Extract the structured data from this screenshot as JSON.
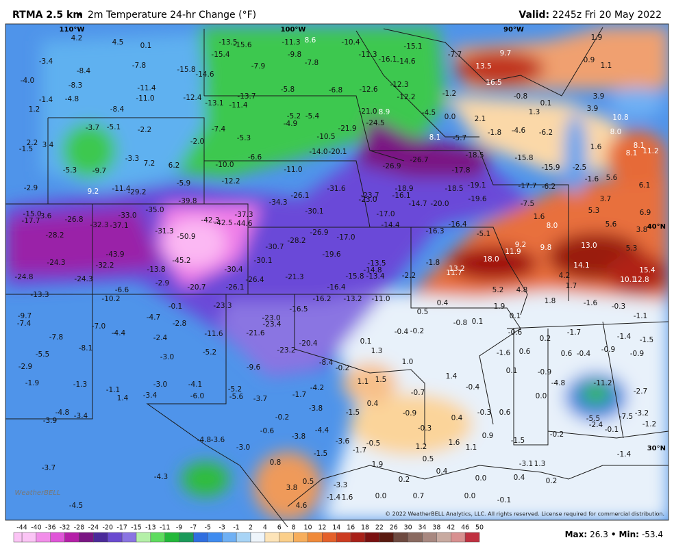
{
  "header": {
    "title": "RTMA 2.5 km",
    "separator": "•",
    "subtitle": "2m Temperature 24-hr Change (°F)",
    "valid_label": "Valid:",
    "valid_time": "2245z Fri 20 May 2022"
  },
  "map": {
    "lon_labels": [
      "110°W",
      "100°W",
      "90°W"
    ],
    "lat_labels": [
      "40°N",
      "30°N"
    ],
    "logo": "WeatherBELL",
    "copyright": "© 2022 WeatherBELL Analytics, LLC. All rights reserved. License required for commercial distribution.",
    "station_values": [
      4.2,
      4.5,
      0.1,
      -13.5,
      -15.6,
      -11.3,
      8.6,
      -10.4,
      -15.1,
      -7.7,
      9.7,
      1.9,
      -3.4,
      -8.4,
      -7.8,
      -15.4,
      -9.8,
      -7.8,
      -11.3,
      -16.1,
      -14.6,
      0.9,
      1.1,
      {
        "value": -4,
        "label": "-4.0"
      },
      -8.3,
      -11.4,
      -15.8,
      -14.6,
      -7.9,
      -5.8,
      -6.8,
      -12.6,
      -12.3,
      13.5,
      16.5,
      -1.2,
      -0.8,
      3.9,
      -1.4,
      -4.8,
      {
        "value": -11,
        "label": "-11.0"
      },
      -12.4,
      -13.1,
      -13.7,
      -11.4,
      -12.2,
      1.2,
      -8.4,
      0.1,
      3.9,
      10.8,
      -5.2,
      -5.4,
      -4.9,
      {
        "value": -21,
        "label": "-21.0"
      },
      8.9,
      -24.5,
      -4.5,
      {
        "value": 0,
        "label": "0.0"
      },
      2.1,
      1.3,
      -3.7,
      -5.1,
      -2.2,
      -7.4,
      -21.9,
      -10.5,
      -1.8,
      -4.6,
      -6.2,
      {
        "value": 8,
        "label": "8.0"
      },
      2.2,
      3.4,
      -1.5,
      {
        "value": -2,
        "label": "-2.0"
      },
      -5.3,
      {
        "value": -14,
        "label": "-14.0"
      },
      -20.1,
      8.1,
      -5.7,
      8.1,
      -3.3,
      7.2,
      6.2,
      -6.6,
      -26.9,
      -26.7,
      -18.5,
      -15.8,
      1.6,
      8.1,
      11.2,
      -5.3,
      -9.7,
      {
        "value": -10,
        "label": "-10.0"
      },
      {
        "value": -11,
        "label": "-11.0"
      },
      -17.8,
      -15.9,
      -2.5,
      -2.9,
      9.2,
      -11.4,
      -29.2,
      -5.9,
      -12.2,
      -31.6,
      -18.9,
      -18.5,
      -19.1,
      -17.7,
      -6.2,
      -1.6,
      5.6,
      6.1,
      -39.8,
      -26.1,
      -34.3,
      -23.7,
      {
        "value": -23,
        "label": "-23.0"
      },
      -16.1,
      -14.7,
      {
        "value": -20,
        "label": "-20.0"
      },
      -19.6,
      -7.5,
      3.7,
      {
        "value": -15,
        "label": "-15.0"
      },
      3.6,
      -17.7,
      -26.8,
      {
        "value": -33,
        "label": "-33.0"
      },
      {
        "value": -35,
        "label": "-35.0"
      },
      -37.3,
      -42.3,
      -42.5,
      -44.6,
      -30.1,
      {
        "value": -17,
        "label": "-17.0"
      },
      1.6,
      5.3,
      6.9,
      -32.3,
      -37.1,
      -31.3,
      -14.4,
      -16.4,
      -16.3,
      {
        "value": 8,
        "label": "8.0"
      },
      5.6,
      3.8,
      -28.2,
      -50.9,
      -26.9,
      -5.1,
      9.2,
      {
        "value": 13,
        "label": "13.0"
      },
      -30.7,
      -28.2,
      {
        "value": -17,
        "label": "-17.0"
      },
      -19.6,
      9.8,
      11.9,
      5.3,
      -43.9,
      -24.3,
      -32.2,
      -45.2,
      -30.1,
      -1.8,
      {
        "value": 18,
        "label": "18.0"
      },
      14.1,
      -13.5,
      13.2,
      11.7,
      15.4,
      -13.8,
      -30.4,
      -14.8,
      -15.8,
      -13.4,
      4.2,
      10.1,
      12.8,
      -24.8,
      -24.3,
      -26.4,
      -21.3,
      -2.2,
      -2.9,
      -20.7,
      -26.1,
      -16.4,
      5.2,
      4.8,
      1.7,
      -13.3,
      -6.6,
      -10.2,
      -16.2,
      -13.2,
      {
        "value": -11,
        "label": "-11.0"
      },
      0.4,
      1.8,
      -1.6,
      -0.3,
      -0.1,
      -23.3,
      -16.5,
      0.5,
      1.9,
      -9.7,
      -4.7,
      {
        "value": -23,
        "label": "-23.0"
      },
      -23.4,
      -0.8,
      0.1,
      0.1,
      -1.1,
      -7.4,
      {
        "value": -7,
        "label": "-7.0"
      },
      -2.8,
      -0.6,
      -1.7,
      -11.6,
      -21.6,
      -0.4,
      -0.2,
      -7.8,
      -4.4,
      -2.4,
      -1.4,
      -1.5,
      0.1,
      -20.4,
      0.2,
      -8.1,
      -5.2,
      -23.2,
      1.3,
      -1.6,
      0.6,
      0.6,
      -0.4,
      -0.9,
      -0.9,
      -5.5,
      {
        "value": -3,
        "label": "-3.0"
      },
      -8.4,
      {
        "value": 1,
        "label": "1.0"
      },
      -2.9,
      -9.6,
      -0.2,
      0.1,
      -0.9,
      1.4,
      -1.9,
      -1.3,
      {
        "value": -3,
        "label": "-3.0"
      },
      -4.1,
      1.1,
      1.5,
      -0.4,
      -4.8,
      -11.2,
      -1.1,
      -5.2,
      -4.2,
      -2.7,
      1.4,
      -3.4,
      {
        "value": -6,
        "label": "-6.0"
      },
      -5.6,
      -3.7,
      -1.7,
      -0.7,
      {
        "value": 0,
        "label": "0.0"
      },
      0.4,
      -3.8,
      -4.8,
      -3.4,
      -3.9,
      -1.5,
      -0.9,
      0.4,
      -0.3,
      0.6,
      -5.5,
      -7.5,
      -3.2,
      -0.2,
      -2.4,
      -0.1,
      -1.2,
      -0.6,
      -4.4,
      -0.3,
      -3.8,
      0.9,
      -0.2,
      -4.8,
      -3.6,
      -3.6,
      -0.5,
      1.2,
      1.6,
      -1.5,
      {
        "value": -3,
        "label": "-3.0"
      },
      -1.7,
      1.1,
      -1.4,
      -1.5,
      0.5,
      -3.1,
      1.3,
      0.8,
      1.9,
      -3.7,
      0.4,
      0.4,
      0.2,
      -4.3,
      0.5,
      0.2,
      {
        "value": 0,
        "label": "0.0"
      },
      -3.3,
      3.8,
      -1.4,
      1.6,
      {
        "value": 0,
        "label": "0.0"
      },
      0.7,
      {
        "value": 0,
        "label": "0.0"
      },
      -0.1,
      -4.5,
      4.6
    ]
  },
  "legend": {
    "ticks": [
      -44,
      -40,
      -36,
      -32,
      -28,
      -24,
      -20,
      -17,
      -15,
      -13,
      -11,
      -9,
      -7,
      -5,
      -3,
      -1,
      2,
      4,
      6,
      8,
      10,
      12,
      14,
      16,
      18,
      22,
      26,
      30,
      34,
      38,
      42,
      46,
      50
    ],
    "colors": [
      "#fbc4f5",
      "#f28ee9",
      "#e055d8",
      "#b51fa8",
      "#7a1583",
      "#4b2a9a",
      "#6a4ad0",
      "#8a74e2",
      "#b4f0a8",
      "#5edc5e",
      "#22b83a",
      "#1a9a5a",
      "#2f6ee0",
      "#3f8cf0",
      "#6fb0f4",
      "#a8d4f6",
      "#eef5fb",
      "#fde4b8",
      "#fbcf8a",
      "#f7ae5c",
      "#f08a3a",
      "#e4602a",
      "#cc3b20",
      "#a82018",
      "#7a1010",
      "#5a1a10",
      "#6e4a40",
      "#8a6a60",
      "#a88880",
      "#c8aaa0",
      "#d89090",
      "#c03040"
    ]
  },
  "footer": {
    "max_label": "Max:",
    "max": 26.3,
    "separator": "•",
    "min_label": "Min:",
    "min": -53.4
  }
}
